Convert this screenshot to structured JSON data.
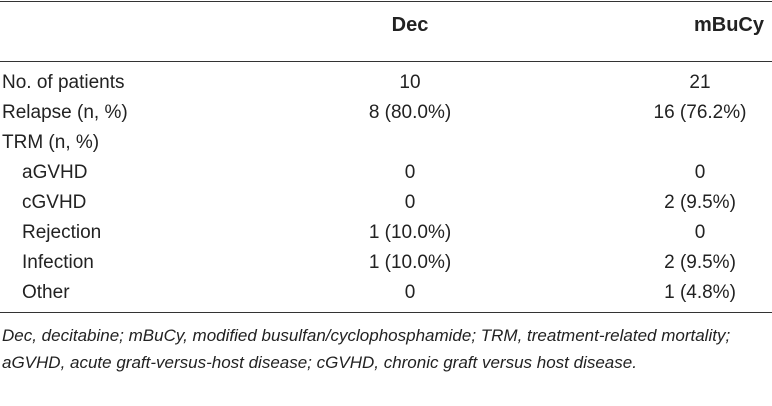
{
  "table": {
    "headers": {
      "label": "",
      "dec": "Dec",
      "mbucy": "mBuCy"
    },
    "rows": [
      {
        "label": "No. of patients",
        "dec": "10",
        "mbucy": "21",
        "indent": false
      },
      {
        "label": "Relapse (n, %)",
        "dec": "8 (80.0%)",
        "mbucy": "16 (76.2%)",
        "indent": false
      },
      {
        "label": "TRM (n, %)",
        "dec": "",
        "mbucy": "",
        "indent": false
      },
      {
        "label": "aGVHD",
        "dec": "0",
        "mbucy": "0",
        "indent": true
      },
      {
        "label": "cGVHD",
        "dec": "0",
        "mbucy": "2 (9.5%)",
        "indent": true
      },
      {
        "label": "Rejection",
        "dec": "1 (10.0%)",
        "mbucy": "0",
        "indent": true
      },
      {
        "label": "Infection",
        "dec": "1 (10.0%)",
        "mbucy": "2 (9.5%)",
        "indent": true
      },
      {
        "label": "Other",
        "dec": "0",
        "mbucy": "1 (4.8%)",
        "indent": true
      }
    ]
  },
  "footnote": "Dec, decitabine; mBuCy, modified busulfan/cyclophosphamide; TRM, treatment-related mortality; aGVHD, acute graft-versus-host disease; cGVHD, chronic graft versus host disease."
}
